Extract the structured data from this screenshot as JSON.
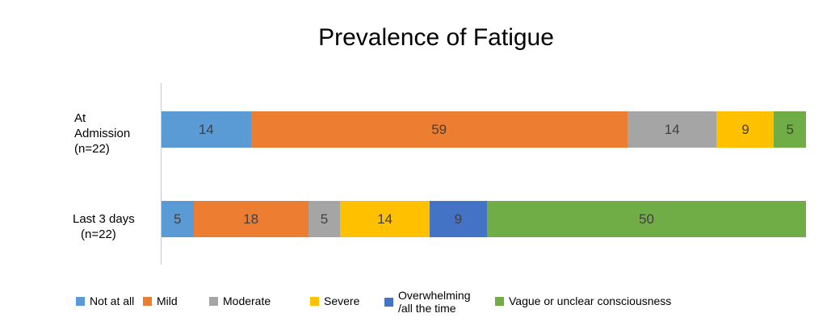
{
  "chart_data": {
    "type": "bar",
    "orientation": "horizontal",
    "stacked": true,
    "title": "Prevalence of Fatigue",
    "categories": [
      {
        "line1": "At",
        "line2": "Admission",
        "line3": "(n=22)"
      },
      {
        "line1": "Last 3 days",
        "line2": "(n=22)"
      }
    ],
    "series": [
      {
        "name": "Not at all",
        "color": "#5b9bd5",
        "values": [
          14,
          5
        ]
      },
      {
        "name": "Mild",
        "color": "#ed7d31",
        "values": [
          59,
          18
        ]
      },
      {
        "name": "Moderate",
        "color": "#a5a5a5",
        "values": [
          14,
          5
        ]
      },
      {
        "name": "Severe",
        "color": "#ffc000",
        "values": [
          9,
          14
        ]
      },
      {
        "name": "Overwhelming\n/all the time",
        "color": "#4472c4",
        "values": [
          0,
          9
        ]
      },
      {
        "name": "Vague or unclear consciousness",
        "color": "#70ad47",
        "values": [
          5,
          50
        ]
      }
    ],
    "legend_position": "bottom",
    "grid": false
  }
}
